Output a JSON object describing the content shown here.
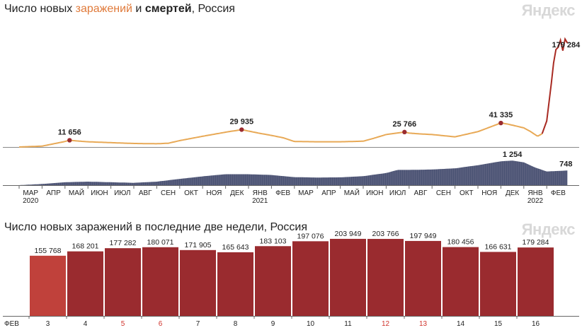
{
  "brand": {
    "watermark": "Яндекс",
    "cases_color": "#e8a956",
    "deaths_color": "#4a5273",
    "highlight_bar_color": "#c0413b",
    "bar_color": "#9a2b2f",
    "weekend_label_color": "#d0342c"
  },
  "chart1": {
    "title_prefix": "Число новых ",
    "title_cases": "заражений",
    "title_mid": " и ",
    "title_deaths": "смертей",
    "title_suffix": ", Россия"
  },
  "chart2": {
    "title": "Число новых заражений в последние две недели, Россия"
  },
  "chart_data": [
    {
      "type": "area",
      "x_ticks": [
        "МАР",
        "АПР",
        "МАЙ",
        "ИЮН",
        "ИЮЛ",
        "АВГ",
        "СЕН",
        "ОКТ",
        "НОЯ",
        "ДЕК",
        "ЯНВ",
        "ФЕВ",
        "МАР",
        "АПР",
        "МАЙ",
        "ИЮН",
        "ИЮЛ",
        "АВГ",
        "СЕН",
        "ОКТ",
        "НОЯ",
        "ДЕК",
        "ЯНВ",
        "ФЕВ"
      ],
      "year_labels": [
        {
          "tick": 0,
          "label": "2020"
        },
        {
          "tick": 10,
          "label": "2021"
        },
        {
          "tick": 22,
          "label": "2022"
        }
      ],
      "series": [
        {
          "key": "cases",
          "name": "заражений",
          "x": [
            0,
            1.0,
            2.0,
            2.2,
            2.5,
            3,
            4,
            5,
            6,
            6.5,
            7,
            8,
            9,
            9.7,
            10,
            10.5,
            11,
            11.5,
            12,
            13,
            14,
            15,
            15.5,
            16,
            16.8,
            17,
            17.5,
            18,
            19,
            20,
            21,
            21.3,
            22,
            22.3,
            22.6,
            22.8,
            23,
            23.2,
            23.3,
            23.4,
            23.5,
            23.6,
            23.7,
            23.8,
            23.9
          ],
          "values": [
            0,
            1500,
            9500,
            11656,
            10500,
            9000,
            7500,
            6100,
            5600,
            6500,
            11000,
            18500,
            25500,
            29935,
            27500,
            23500,
            20000,
            16000,
            9500,
            9000,
            9000,
            10000,
            15500,
            21500,
            25766,
            24000,
            22500,
            21500,
            17500,
            26500,
            41335,
            39500,
            33000,
            26500,
            18500,
            23000,
            45000,
            110000,
            145000,
            168000,
            172000,
            184000,
            166000,
            186000,
            179284
          ],
          "labels": [
            {
              "x": 2.2,
              "value": 11656,
              "text": "11 656"
            },
            {
              "x": 9.7,
              "value": 29935,
              "text": "29 935"
            },
            {
              "x": 16.8,
              "value": 25766,
              "text": "25 766"
            },
            {
              "x": 21.0,
              "value": 41335,
              "text": "41 335"
            },
            {
              "x": 23.9,
              "value": 179284,
              "text": "179 284"
            }
          ],
          "ylim": [
            0,
            190000
          ]
        },
        {
          "key": "deaths",
          "name": "смертей",
          "x": [
            0,
            1.0,
            2.0,
            3,
            4,
            5,
            6,
            7,
            8,
            9,
            10,
            11,
            12,
            13,
            14,
            15,
            16,
            16.5,
            17,
            18,
            19,
            20,
            21,
            21.5,
            22,
            22.5,
            23,
            23.9
          ],
          "values": [
            0,
            60,
            150,
            180,
            150,
            120,
            180,
            320,
            450,
            560,
            560,
            520,
            410,
            390,
            400,
            460,
            620,
            780,
            780,
            800,
            860,
            1020,
            1220,
            1254,
            1170,
            900,
            700,
            748
          ],
          "labels": [
            {
              "x": 21.5,
              "value": 1254,
              "text": "1 254"
            },
            {
              "x": 23.9,
              "value": 748,
              "text": "748"
            }
          ],
          "ylim": [
            0,
            1300
          ]
        }
      ]
    },
    {
      "type": "bar",
      "month_label": "ФЕВ",
      "categories": [
        "3",
        "4",
        "5",
        "6",
        "7",
        "8",
        "9",
        "10",
        "11",
        "12",
        "13",
        "14",
        "15",
        "16"
      ],
      "weekend": [
        false,
        false,
        true,
        true,
        false,
        false,
        false,
        false,
        false,
        true,
        true,
        false,
        false,
        false
      ],
      "highlight_first": true,
      "values": [
        155768,
        168201,
        177282,
        180071,
        171905,
        165643,
        183103,
        197076,
        203949,
        203766,
        197949,
        180456,
        166631,
        179284
      ],
      "value_labels": [
        "155 768",
        "168 201",
        "177 282",
        "180 071",
        "171 905",
        "165 643",
        "183 103",
        "197 076",
        "203 949",
        "203 766",
        "197 949",
        "180 456",
        "166 631",
        "179 284"
      ],
      "ylim": [
        0,
        220000
      ]
    }
  ]
}
